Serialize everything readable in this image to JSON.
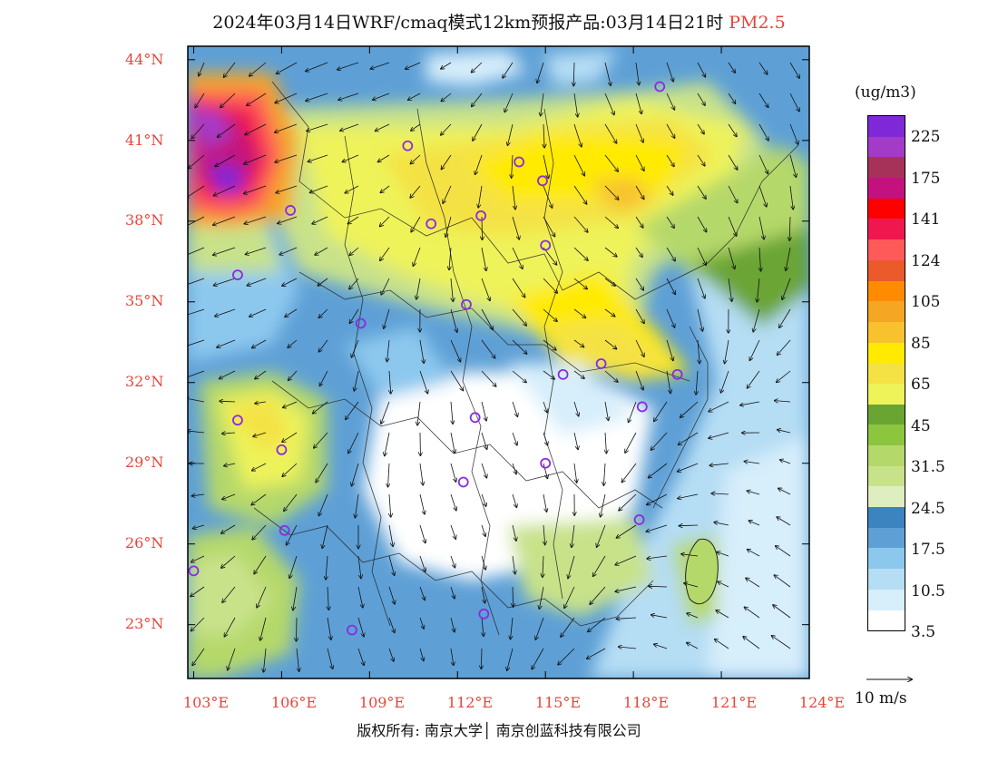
{
  "header": {
    "title": "2024年03月14日WRF/cmaq模式12km预报产品:03月14日21时",
    "pollutant": "PM2.5"
  },
  "map": {
    "lat_labels": [
      "44°N",
      "41°N",
      "38°N",
      "35°N",
      "32°N",
      "29°N",
      "26°N",
      "23°N"
    ],
    "lon_labels": [
      "103°E",
      "106°E",
      "109°E",
      "112°E",
      "115°E",
      "118°E",
      "121°E",
      "124°E"
    ],
    "lat_values": [
      44,
      41,
      38,
      35,
      32,
      29,
      26,
      23
    ],
    "lon_values": [
      103,
      106,
      109,
      112,
      115,
      118,
      121,
      124
    ],
    "lat_range": [
      21.0,
      44.5
    ],
    "lon_range": [
      102.8,
      124.0
    ],
    "stations": [
      {
        "lat": 43.0,
        "lon": 118.9
      },
      {
        "lat": 40.8,
        "lon": 110.3
      },
      {
        "lat": 40.2,
        "lon": 114.1
      },
      {
        "lat": 39.5,
        "lon": 114.9
      },
      {
        "lat": 38.2,
        "lon": 112.8
      },
      {
        "lat": 38.4,
        "lon": 106.3
      },
      {
        "lat": 37.9,
        "lon": 111.1
      },
      {
        "lat": 37.1,
        "lon": 115.0
      },
      {
        "lat": 36.0,
        "lon": 104.5
      },
      {
        "lat": 34.9,
        "lon": 112.3
      },
      {
        "lat": 34.2,
        "lon": 108.7
      },
      {
        "lat": 32.7,
        "lon": 116.9
      },
      {
        "lat": 32.3,
        "lon": 115.6
      },
      {
        "lat": 32.3,
        "lon": 119.5
      },
      {
        "lat": 31.1,
        "lon": 118.3
      },
      {
        "lat": 30.7,
        "lon": 112.6
      },
      {
        "lat": 30.6,
        "lon": 104.5
      },
      {
        "lat": 29.5,
        "lon": 106.0
      },
      {
        "lat": 29.0,
        "lon": 115.0
      },
      {
        "lat": 28.3,
        "lon": 112.2
      },
      {
        "lat": 26.9,
        "lon": 118.2
      },
      {
        "lat": 26.5,
        "lon": 106.1
      },
      {
        "lat": 25.0,
        "lon": 103.0
      },
      {
        "lat": 23.4,
        "lon": 112.9
      },
      {
        "lat": 22.8,
        "lon": 108.4
      }
    ]
  },
  "legend": {
    "unit": "(ug/m3)",
    "colors": [
      "#7e28d8",
      "#a33bc9",
      "#a6325a",
      "#c3127e",
      "#ff0000",
      "#f0174f",
      "#ff5a5a",
      "#ea5a2a",
      "#ff8c00",
      "#f5a623",
      "#f7c22e",
      "#ffea00",
      "#f4e244",
      "#eef35a",
      "#6aa534",
      "#8cc63f",
      "#b5d86b",
      "#c8e28a",
      "#dfeec0",
      "#3b84c0",
      "#5ea0d6",
      "#8cc8ee",
      "#b5ddf4",
      "#d7eefb",
      "#ffffff"
    ],
    "labels": [
      "225",
      "175",
      "141",
      "124",
      "105",
      "85",
      "65",
      "45",
      "31.5",
      "24.5",
      "17.5",
      "10.5",
      "3.5"
    ]
  },
  "wind_scale": {
    "label": "10 m/s"
  },
  "footer": {
    "copyright": "版权所有: 南京大学│ 南京创蓝科技有限公司"
  },
  "colors": {
    "label": "#e8443a",
    "station": "#8a2be2"
  }
}
